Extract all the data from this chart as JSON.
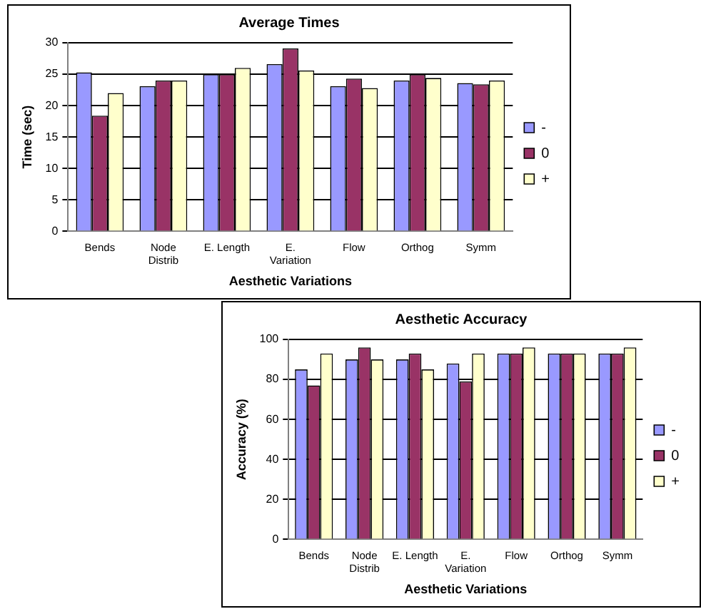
{
  "chart_data": [
    {
      "type": "bar",
      "title": "Average Times",
      "xlabel": "Aesthetic Variations",
      "ylabel": "Time (sec)",
      "categories": [
        "Bends",
        "Node\nDistrib",
        "E. Length",
        "E.\nVariation",
        "Flow",
        "Orthog",
        "Symm"
      ],
      "series": [
        {
          "name": "-",
          "color": "#9999ff",
          "values": [
            25.3,
            23.1,
            25,
            26.6,
            23.1,
            24,
            23.6
          ]
        },
        {
          "name": "0",
          "color": "#993366",
          "values": [
            18.4,
            24,
            25,
            29.1,
            24.3,
            25,
            23.4
          ]
        },
        {
          "name": "+",
          "color": "#ffffcc",
          "values": [
            22,
            24,
            26,
            25.6,
            22.8,
            24.4,
            24
          ]
        }
      ],
      "ylim": [
        0,
        30
      ],
      "yticks": [
        0,
        5,
        10,
        15,
        20,
        25,
        30
      ],
      "grid": "y",
      "legend": "right"
    },
    {
      "type": "bar",
      "title": "Aesthetic Accuracy",
      "xlabel": "Aesthetic Variations",
      "ylabel": "Accuracy (%)",
      "categories": [
        "Bends",
        "Node\nDistrib",
        "E. Length",
        "E.\nVariation",
        "Flow",
        "Orthog",
        "Symm"
      ],
      "series": [
        {
          "name": "-",
          "color": "#9999ff",
          "values": [
            85,
            90,
            90,
            88,
            93,
            93,
            93
          ]
        },
        {
          "name": "0",
          "color": "#993366",
          "values": [
            77,
            96,
            93,
            79,
            93,
            93,
            93
          ]
        },
        {
          "name": "+",
          "color": "#ffffcc",
          "values": [
            93,
            90,
            85,
            93,
            96,
            93,
            96
          ]
        }
      ],
      "ylim": [
        0,
        100
      ],
      "yticks": [
        0,
        20,
        40,
        60,
        80,
        100
      ],
      "grid": "y",
      "legend": "right"
    }
  ]
}
